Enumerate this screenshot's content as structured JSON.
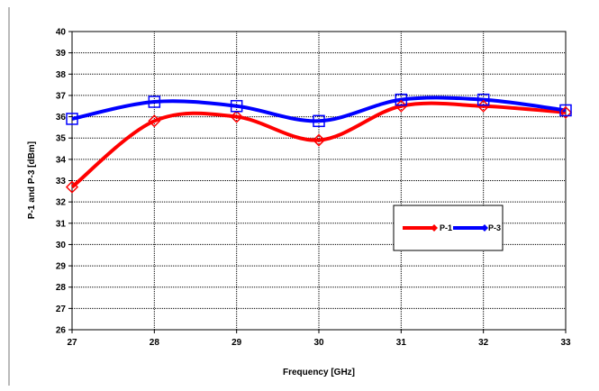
{
  "chart_data": {
    "type": "line",
    "title": "",
    "xlabel": "Frequency [GHz]",
    "ylabel": "P-1 and P-3 [dBm]",
    "x": [
      27,
      28,
      29,
      30,
      31,
      32,
      33
    ],
    "xlim": [
      27,
      33
    ],
    "ylim": [
      26,
      40
    ],
    "xticks": [
      "27",
      "28",
      "29",
      "30",
      "31",
      "32",
      "33"
    ],
    "yticks": [
      "26",
      "27",
      "28",
      "29",
      "30",
      "31",
      "32",
      "33",
      "34",
      "35",
      "36",
      "37",
      "38",
      "39",
      "40"
    ],
    "grid": true,
    "legend_position": "right-center",
    "series": [
      {
        "name": "P-1",
        "color": "#ff0000",
        "marker": "diamond",
        "values": [
          32.7,
          35.8,
          36.0,
          34.9,
          36.5,
          36.5,
          36.2
        ]
      },
      {
        "name": "P-3",
        "color": "#0000ff",
        "marker": "square",
        "values": [
          35.9,
          36.7,
          36.5,
          35.8,
          36.8,
          36.8,
          36.3
        ]
      }
    ]
  }
}
